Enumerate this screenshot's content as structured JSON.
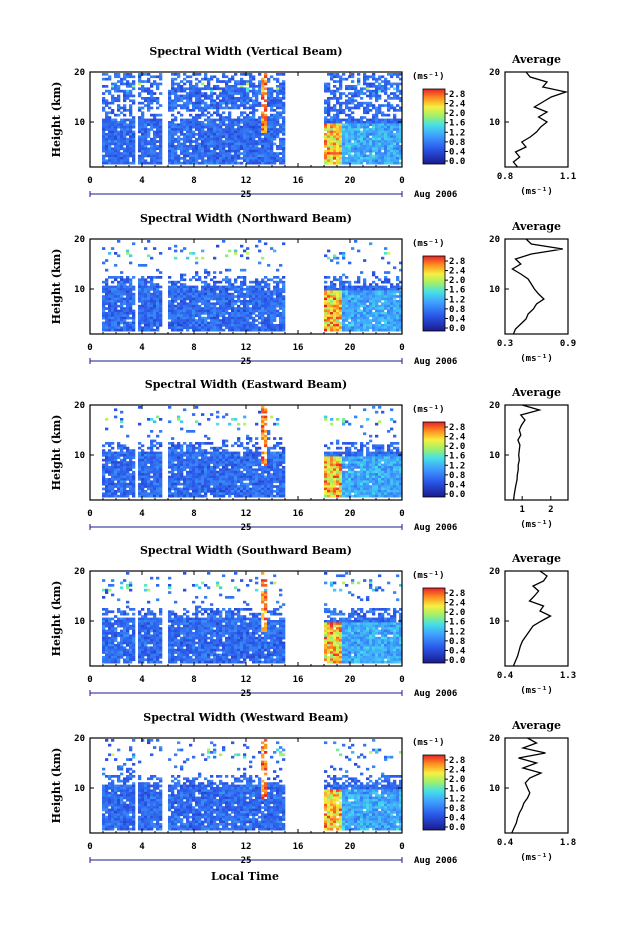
{
  "figure": {
    "xlabel": "Local Time",
    "date_label": "25",
    "month_label": "Aug 2006",
    "colorbar_unit": "(ms⁻¹)",
    "profile_title": "Average",
    "profile_unit": "(ms⁻¹)"
  },
  "chart_data": [
    {
      "type": "heatmap",
      "title": "Spectral Width (Vertical Beam)",
      "ylabel": "Height (km)",
      "x_ticks": [
        "0",
        "4",
        "8",
        "12",
        "16",
        "20",
        "0"
      ],
      "xlim": [
        0,
        24
      ],
      "y_ticks": [
        "20",
        "10"
      ],
      "ylim": [
        1,
        20
      ],
      "colorbar_ticks": [
        "2.8",
        "2.4",
        "2.0",
        "1.6",
        "1.2",
        "0.8",
        "0.4",
        "0.0"
      ],
      "zlim": [
        0,
        2.8
      ],
      "gaps_hours": [
        [
          3.3,
          3.6
        ],
        [
          5.5,
          5.8
        ],
        [
          15.0,
          18.0
        ]
      ],
      "bands": [
        "v"
      ]
    },
    {
      "type": "line",
      "title": "Average",
      "xlabel": "(ms⁻¹)",
      "ylabel": "",
      "x_ticks": [
        "0.8",
        "1.1"
      ],
      "xlim": [
        0.8,
        1.1
      ],
      "y_ticks": [
        "20",
        "10"
      ],
      "ylim": [
        1,
        20
      ]
    },
    {
      "type": "heatmap",
      "title": "Spectral Width (Northward Beam)",
      "ylabel": "Height (km)",
      "x_ticks": [
        "0",
        "4",
        "8",
        "12",
        "16",
        "20",
        "0"
      ],
      "xlim": [
        0,
        24
      ],
      "y_ticks": [
        "20",
        "10"
      ],
      "ylim": [
        1,
        20
      ],
      "colorbar_ticks": [
        "2.8",
        "2.4",
        "2.0",
        "1.6",
        "1.2",
        "0.8",
        "0.4",
        "0.0"
      ],
      "zlim": [
        0,
        2.8
      ],
      "gaps_hours": [
        [
          3.3,
          3.6
        ],
        [
          5.5,
          5.8
        ],
        [
          15.0,
          18.0
        ]
      ],
      "bands": [
        "n"
      ]
    },
    {
      "type": "line",
      "title": "Average",
      "xlabel": "(ms⁻¹)",
      "ylabel": "",
      "x_ticks": [
        "0.3",
        "0.9"
      ],
      "xlim": [
        0.3,
        0.9
      ],
      "y_ticks": [
        "20",
        "10"
      ],
      "ylim": [
        1,
        20
      ]
    },
    {
      "type": "heatmap",
      "title": "Spectral Width (Eastward Beam)",
      "ylabel": "Height (km)",
      "x_ticks": [
        "0",
        "4",
        "8",
        "12",
        "16",
        "20",
        "0"
      ],
      "xlim": [
        0,
        24
      ],
      "y_ticks": [
        "20",
        "10"
      ],
      "ylim": [
        1,
        20
      ],
      "colorbar_ticks": [
        "2.8",
        "2.4",
        "2.0",
        "1.6",
        "1.2",
        "0.8",
        "0.4",
        "0.0"
      ],
      "zlim": [
        0,
        2.8
      ],
      "gaps_hours": [
        [
          3.3,
          3.6
        ],
        [
          5.5,
          5.8
        ],
        [
          15.0,
          18.0
        ]
      ],
      "bands": [
        "e"
      ]
    },
    {
      "type": "line",
      "title": "Average",
      "xlabel": "(ms⁻¹)",
      "ylabel": "",
      "x_ticks": [
        "1",
        "2"
      ],
      "xlim": [
        0.4,
        2.6
      ],
      "y_ticks": [
        "20",
        "10"
      ],
      "ylim": [
        1,
        20
      ]
    },
    {
      "type": "heatmap",
      "title": "Spectral Width (Southward Beam)",
      "ylabel": "Height (km)",
      "x_ticks": [
        "0",
        "4",
        "8",
        "12",
        "16",
        "20",
        "0"
      ],
      "xlim": [
        0,
        24
      ],
      "y_ticks": [
        "20",
        "10"
      ],
      "ylim": [
        1,
        20
      ],
      "colorbar_ticks": [
        "2.8",
        "2.4",
        "2.0",
        "1.6",
        "1.2",
        "0.8",
        "0.4",
        "0.0"
      ],
      "zlim": [
        0,
        2.8
      ],
      "gaps_hours": [
        [
          3.3,
          3.6
        ],
        [
          5.5,
          5.8
        ],
        [
          15.0,
          18.0
        ]
      ],
      "bands": [
        "s"
      ]
    },
    {
      "type": "line",
      "title": "Average",
      "xlabel": "(ms⁻¹)",
      "ylabel": "",
      "x_ticks": [
        "0.4",
        "1.3"
      ],
      "xlim": [
        0.4,
        1.3
      ],
      "y_ticks": [
        "20",
        "10"
      ],
      "ylim": [
        1,
        20
      ]
    },
    {
      "type": "heatmap",
      "title": "Spectral Width (Westward Beam)",
      "ylabel": "Height (km)",
      "x_ticks": [
        "0",
        "4",
        "8",
        "12",
        "16",
        "20",
        "0"
      ],
      "xlim": [
        0,
        24
      ],
      "y_ticks": [
        "20",
        "10"
      ],
      "ylim": [
        1,
        20
      ],
      "colorbar_ticks": [
        "2.8",
        "2.4",
        "2.0",
        "1.6",
        "1.2",
        "0.8",
        "0.4",
        "0.0"
      ],
      "zlim": [
        0,
        2.8
      ],
      "gaps_hours": [
        [
          3.3,
          3.6
        ],
        [
          5.5,
          5.8
        ],
        [
          15.0,
          18.0
        ]
      ],
      "bands": [
        "w"
      ]
    },
    {
      "type": "line",
      "title": "Average",
      "xlabel": "(ms⁻¹)",
      "ylabel": "",
      "x_ticks": [
        "0.4",
        "1.8"
      ],
      "xlim": [
        0.4,
        1.8
      ],
      "y_ticks": [
        "20",
        "10"
      ],
      "ylim": [
        1,
        20
      ]
    }
  ],
  "profiles": [
    [
      [
        1,
        0.86
      ],
      [
        2,
        0.84
      ],
      [
        3,
        0.87
      ],
      [
        4,
        0.85
      ],
      [
        5,
        0.9
      ],
      [
        6,
        0.88
      ],
      [
        7,
        0.92
      ],
      [
        8,
        0.95
      ],
      [
        9,
        0.97
      ],
      [
        10,
        1.0
      ],
      [
        11,
        0.96
      ],
      [
        12,
        1.0
      ],
      [
        13,
        0.94
      ],
      [
        14,
        0.98
      ],
      [
        15,
        1.02
      ],
      [
        16,
        1.09
      ],
      [
        17,
        0.98
      ],
      [
        18,
        1.0
      ],
      [
        19,
        0.92
      ],
      [
        20,
        0.9
      ]
    ],
    [
      [
        1,
        0.38
      ],
      [
        2,
        0.4
      ],
      [
        3,
        0.45
      ],
      [
        4,
        0.5
      ],
      [
        5,
        0.52
      ],
      [
        6,
        0.57
      ],
      [
        7,
        0.6
      ],
      [
        8,
        0.67
      ],
      [
        9,
        0.62
      ],
      [
        10,
        0.58
      ],
      [
        11,
        0.55
      ],
      [
        12,
        0.52
      ],
      [
        13,
        0.45
      ],
      [
        14,
        0.37
      ],
      [
        15,
        0.45
      ],
      [
        16,
        0.4
      ],
      [
        17,
        0.55
      ],
      [
        18,
        0.85
      ],
      [
        19,
        0.55
      ],
      [
        20,
        0.5
      ]
    ],
    [
      [
        1,
        0.7
      ],
      [
        2,
        0.72
      ],
      [
        3,
        0.75
      ],
      [
        4,
        0.78
      ],
      [
        5,
        0.82
      ],
      [
        6,
        0.83
      ],
      [
        7,
        0.86
      ],
      [
        8,
        0.86
      ],
      [
        9,
        0.9
      ],
      [
        10,
        0.88
      ],
      [
        11,
        0.9
      ],
      [
        12,
        0.92
      ],
      [
        13,
        0.85
      ],
      [
        14,
        0.95
      ],
      [
        15,
        0.9
      ],
      [
        16,
        0.98
      ],
      [
        17,
        1.1
      ],
      [
        18,
        0.95
      ],
      [
        19,
        1.6
      ],
      [
        20,
        1.0
      ]
    ],
    [
      [
        1,
        0.52
      ],
      [
        2,
        0.55
      ],
      [
        3,
        0.58
      ],
      [
        4,
        0.6
      ],
      [
        5,
        0.62
      ],
      [
        6,
        0.65
      ],
      [
        7,
        0.7
      ],
      [
        8,
        0.75
      ],
      [
        9,
        0.8
      ],
      [
        10,
        0.92
      ],
      [
        11,
        1.05
      ],
      [
        12,
        0.9
      ],
      [
        13,
        0.95
      ],
      [
        14,
        0.75
      ],
      [
        15,
        0.82
      ],
      [
        16,
        0.88
      ],
      [
        17,
        0.8
      ],
      [
        18,
        0.95
      ],
      [
        19,
        1.0
      ],
      [
        20,
        0.9
      ]
    ],
    [
      [
        1,
        0.55
      ],
      [
        2,
        0.6
      ],
      [
        3,
        0.65
      ],
      [
        4,
        0.68
      ],
      [
        5,
        0.72
      ],
      [
        6,
        0.78
      ],
      [
        7,
        0.82
      ],
      [
        8,
        0.9
      ],
      [
        9,
        0.95
      ],
      [
        10,
        0.9
      ],
      [
        11,
        0.85
      ],
      [
        12,
        0.95
      ],
      [
        13,
        1.2
      ],
      [
        14,
        0.8
      ],
      [
        15,
        1.1
      ],
      [
        16,
        0.7
      ],
      [
        17,
        1.3
      ],
      [
        18,
        0.8
      ],
      [
        19,
        1.1
      ],
      [
        20,
        0.9
      ]
    ]
  ]
}
